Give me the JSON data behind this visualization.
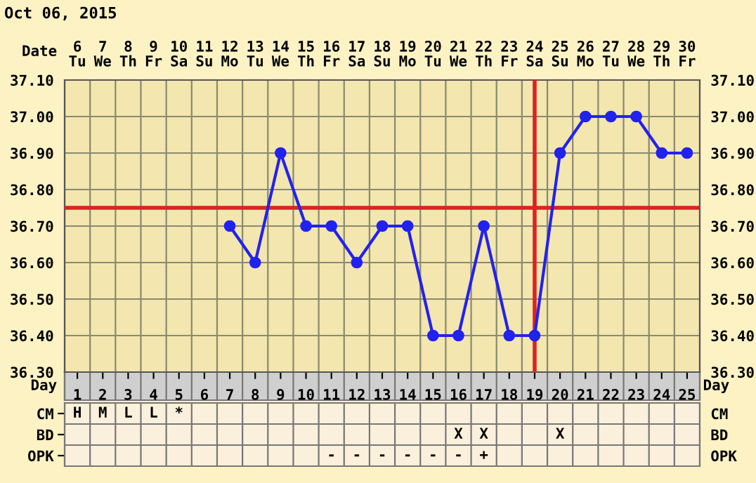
{
  "chart_data": [
    {
      "type": "line",
      "title": "Oct 06, 2015",
      "xlabel": "Day",
      "x2label": "Date",
      "categories": [
        "1",
        "2",
        "3",
        "4",
        "5",
        "6",
        "7",
        "8",
        "9",
        "10",
        "11",
        "12",
        "13",
        "14",
        "15",
        "16",
        "17",
        "18",
        "19",
        "20",
        "21",
        "22",
        "23",
        "24",
        "25"
      ],
      "series": [
        {
          "color": "#2222ee",
          "values": [
            null,
            null,
            null,
            null,
            null,
            null,
            36.7,
            36.6,
            36.9,
            36.7,
            36.7,
            36.6,
            36.7,
            36.7,
            36.4,
            36.4,
            36.7,
            36.4,
            36.4,
            36.9,
            37.0,
            37.0,
            37.0,
            36.9,
            36.9
          ]
        }
      ],
      "ylim": [
        36.3,
        37.1
      ],
      "yticks": [
        {
          "value": 36.3,
          "label": "36.30"
        },
        {
          "value": 36.4,
          "label": "36.40"
        },
        {
          "value": 36.5,
          "label": "36.50"
        },
        {
          "value": 36.6,
          "label": "36.60"
        },
        {
          "value": 36.7,
          "label": "36.70"
        },
        {
          "value": 36.8,
          "label": "36.80"
        },
        {
          "value": 36.9,
          "label": "36.90"
        },
        {
          "value": 37.0,
          "label": "37.00"
        },
        {
          "value": 37.1,
          "label": "37.10"
        }
      ],
      "x2lim": [
        5.5,
        30.5
      ],
      "x2ticks": [
        {
          "value": 6,
          "label": "6\nTu"
        },
        {
          "value": 7,
          "label": "7\nWe"
        },
        {
          "value": 8,
          "label": "8\nTh"
        },
        {
          "value": 9,
          "label": "9\nFr"
        },
        {
          "value": 10,
          "label": "10\nSa"
        },
        {
          "value": 11,
          "label": "11\nSu"
        },
        {
          "value": 12,
          "label": "12\nMo"
        },
        {
          "value": 13,
          "label": "13\nTu"
        },
        {
          "value": 14,
          "label": "14\nWe"
        },
        {
          "value": 15,
          "label": "15\nTh"
        },
        {
          "value": 16,
          "label": "16\nFr"
        },
        {
          "value": 17,
          "label": "17\nSa"
        },
        {
          "value": 18,
          "label": "18\nSu"
        },
        {
          "value": 19,
          "label": "19\nMo"
        },
        {
          "value": 20,
          "label": "20\nTu"
        },
        {
          "value": 21,
          "label": "21\nWe"
        },
        {
          "value": 22,
          "label": "22\nTh"
        },
        {
          "value": 23,
          "label": "23\nFr"
        },
        {
          "value": 24,
          "label": "24\nSa"
        },
        {
          "value": 25,
          "label": "25\nSu"
        },
        {
          "value": 26,
          "label": "26\nMo"
        },
        {
          "value": 27,
          "label": "27\nTu"
        },
        {
          "value": 28,
          "label": "28\nWe"
        },
        {
          "value": 29,
          "label": "29\nTh"
        },
        {
          "value": 30,
          "label": "30\nFr"
        }
      ],
      "ref_lines": [
        {
          "axis": "y",
          "value": 36.75,
          "color": "#dd2222"
        },
        {
          "axis": "x",
          "value": "19",
          "color": "#dd2222"
        }
      ],
      "grid": true,
      "marker": "circle",
      "line_style": "solid"
    },
    {
      "type": "heatmap",
      "categories": [
        null,
        null,
        null,
        null,
        null,
        null,
        null,
        null,
        null,
        null,
        null,
        null,
        null,
        null,
        null,
        null,
        null,
        null,
        null,
        null,
        null,
        null,
        null,
        null,
        null
      ],
      "y_categories": [
        "CM",
        "BD",
        "OPK"
      ],
      "y2_categories": [
        "CM",
        "BD",
        "OPK"
      ],
      "cells": [
        [
          null,
          null,
          null,
          null,
          null,
          null,
          null,
          null,
          null,
          null,
          null,
          null,
          null,
          null,
          null,
          null,
          null,
          null,
          null,
          null,
          null,
          null,
          null,
          null,
          null
        ],
        [
          null,
          null,
          null,
          null,
          null,
          null,
          null,
          null,
          null,
          null,
          null,
          null,
          null,
          null,
          null,
          null,
          null,
          null,
          null,
          null,
          null,
          null,
          null,
          null,
          null
        ],
        [
          null,
          null,
          null,
          null,
          null,
          null,
          null,
          null,
          null,
          null,
          null,
          null,
          null,
          null,
          null,
          null,
          null,
          null,
          null,
          null,
          null,
          null,
          null,
          null,
          null
        ]
      ],
      "cell_labels": [
        [
          "H",
          "M",
          "L",
          "L",
          "*",
          null,
          null,
          null,
          null,
          null,
          null,
          null,
          null,
          null,
          null,
          null,
          null,
          null,
          null,
          null,
          null,
          null,
          null,
          null,
          null
        ],
        [
          null,
          null,
          null,
          null,
          null,
          null,
          null,
          null,
          null,
          null,
          null,
          null,
          null,
          null,
          null,
          "X",
          "X",
          null,
          null,
          "X",
          null,
          null,
          null,
          null,
          null
        ],
        [
          null,
          null,
          null,
          null,
          null,
          null,
          null,
          null,
          null,
          null,
          "-",
          "-",
          "-",
          "-",
          "-",
          "-",
          "+",
          null,
          null,
          null,
          null,
          null,
          null,
          null,
          null
        ]
      ]
    }
  ]
}
